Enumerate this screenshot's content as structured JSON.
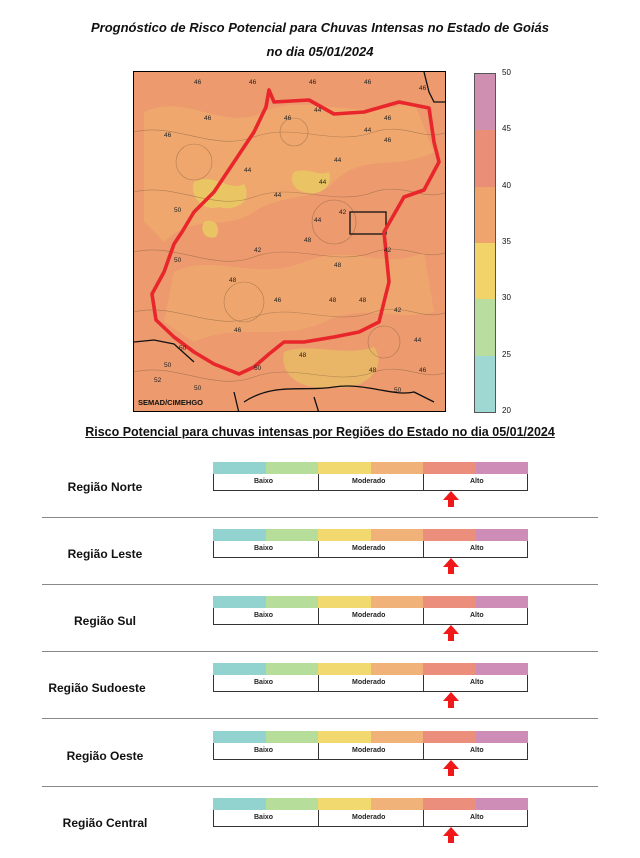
{
  "title_line1": "Prognóstico de Risco Potencial para Chuvas Intensas no Estado de Goiás",
  "title_line2": "no dia 05/01/2024",
  "map": {
    "credit": "SEMAD/CIMEHGO",
    "contour_labels": [
      "46",
      "46",
      "46",
      "46",
      "46",
      "44",
      "44",
      "44",
      "44",
      "44",
      "44",
      "46",
      "46",
      "46",
      "46",
      "50",
      "48",
      "48",
      "50",
      "48",
      "46",
      "46",
      "48",
      "50",
      "50",
      "52",
      "50",
      "46",
      "44",
      "42",
      "42",
      "42",
      "44",
      "46",
      "48",
      "50",
      "48",
      "50",
      "42",
      "48"
    ],
    "colors": {
      "background": "#ec9a6e",
      "mid": "#f0a96e",
      "yellow": "#e8cd62",
      "border_red": "#e8262b"
    }
  },
  "colorbar": {
    "ticks": [
      "50",
      "45",
      "40",
      "35",
      "30",
      "25",
      "20"
    ],
    "bands": [
      "#cf8fb0",
      "#ea8e78",
      "#eea46c",
      "#f1d36a",
      "#b9dd9f",
      "#9fd8d2"
    ]
  },
  "subtitle": "Risco Potencial para chuvas intensas por Regiões do Estado no dia 05/01/2024",
  "scale_labels": {
    "low": "Baixo",
    "mid": "Moderado",
    "high": "Alto"
  },
  "scale_colors": [
    "#92d2cf",
    "#b7dd9b",
    "#f2d96f",
    "#f0b278",
    "#ec8e7c",
    "#cd8db6"
  ],
  "regions": [
    {
      "name": "Região Norte",
      "level": "Alto"
    },
    {
      "name": "Região Leste",
      "level": "Alto"
    },
    {
      "name": "Região Sul",
      "level": "Alto"
    },
    {
      "name": "Região Sudoeste",
      "level": "Alto"
    },
    {
      "name": "Região Oeste",
      "level": "Alto"
    },
    {
      "name": "Região Central",
      "level": "Alto"
    }
  ]
}
